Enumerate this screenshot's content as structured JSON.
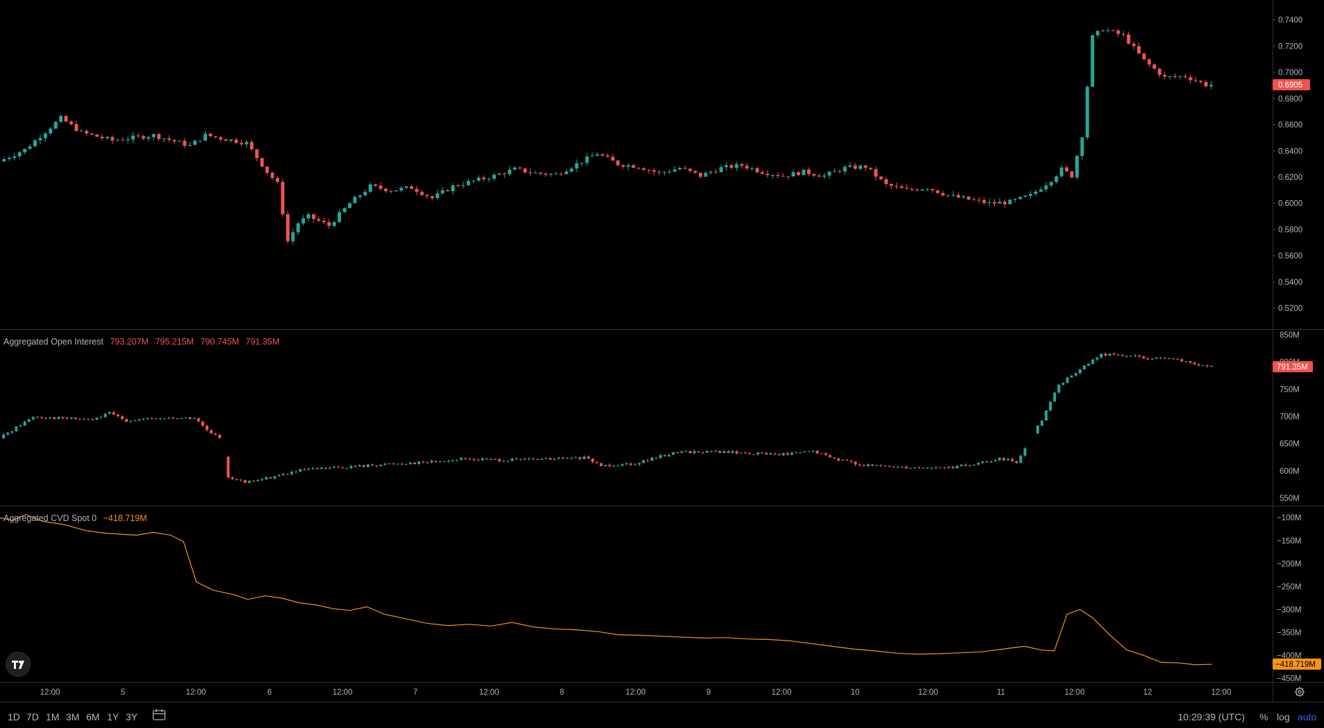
{
  "chart_data": [
    {
      "type": "candlestick",
      "price_axis": {
        "ticks": [
          "0.7400",
          "0.7200",
          "0.7000",
          "0.6800",
          "0.6600",
          "0.6400",
          "0.6200",
          "0.6000",
          "0.5800",
          "0.5600",
          "0.5400",
          "0.5200"
        ],
        "range": [
          0.506,
          0.752
        ]
      },
      "last_price": "0.6905",
      "last_price_value": 0.6905,
      "candle_count": 168,
      "price_anchors": [
        [
          0,
          0.632
        ],
        [
          5,
          0.641
        ],
        [
          12,
          0.665
        ],
        [
          16,
          0.654
        ],
        [
          22,
          0.648
        ],
        [
          30,
          0.652
        ],
        [
          37,
          0.644
        ],
        [
          40,
          0.652
        ],
        [
          44,
          0.649
        ],
        [
          48,
          0.646
        ],
        [
          52,
          0.624
        ],
        [
          54,
          0.615
        ],
        [
          56,
          0.571
        ],
        [
          58,
          0.585
        ],
        [
          60,
          0.59
        ],
        [
          64,
          0.583
        ],
        [
          68,
          0.6
        ],
        [
          72,
          0.613
        ],
        [
          76,
          0.61
        ],
        [
          80,
          0.612
        ],
        [
          84,
          0.604
        ],
        [
          88,
          0.613
        ],
        [
          92,
          0.617
        ],
        [
          96,
          0.621
        ],
        [
          100,
          0.626
        ],
        [
          104,
          0.623
        ],
        [
          108,
          0.622
        ],
        [
          112,
          0.63
        ],
        [
          116,
          0.638
        ],
        [
          120,
          0.63
        ],
        [
          124,
          0.628
        ],
        [
          128,
          0.623
        ],
        [
          132,
          0.627
        ],
        [
          136,
          0.621
        ],
        [
          140,
          0.627
        ],
        [
          144,
          0.629
        ],
        [
          148,
          0.624
        ],
        [
          152,
          0.621
        ],
        [
          156,
          0.624
        ],
        [
          160,
          0.621
        ],
        [
          164,
          0.627
        ],
        [
          168,
          0.628
        ],
        [
          172,
          0.614
        ],
        [
          176,
          0.61
        ],
        [
          180,
          0.612
        ],
        [
          184,
          0.606
        ],
        [
          188,
          0.603
        ],
        [
          192,
          0.6
        ],
        [
          196,
          0.601
        ],
        [
          200,
          0.606
        ],
        [
          204,
          0.618
        ],
        [
          206,
          0.626
        ],
        [
          208,
          0.621
        ],
        [
          210,
          0.652
        ],
        [
          212,
          0.727
        ],
        [
          214,
          0.733
        ],
        [
          218,
          0.728
        ],
        [
          222,
          0.709
        ],
        [
          226,
          0.696
        ],
        [
          230,
          0.697
        ],
        [
          234,
          0.6905
        ]
      ],
      "open_interest": {
        "title": "Aggregated Open Interest",
        "values": [
          "793.207M",
          "795.215M",
          "790.745M",
          "791.35M"
        ],
        "last_label": "791.35M",
        "last_value": 791.35,
        "axis_ticks": [
          "850M",
          "800M",
          "750M",
          "700M",
          "650M",
          "600M",
          "550M"
        ],
        "range": [
          540,
          855
        ],
        "anchors": [
          [
            0,
            660
          ],
          [
            4,
            680
          ],
          [
            8,
            700
          ],
          [
            14,
            697
          ],
          [
            22,
            694
          ],
          [
            26,
            706
          ],
          [
            30,
            693
          ],
          [
            40,
            697
          ],
          [
            46,
            697
          ],
          [
            50,
            667
          ],
          [
            52,
            662
          ],
          [
            54,
            590
          ],
          [
            58,
            578
          ],
          [
            62,
            585
          ],
          [
            66,
            592
          ],
          [
            72,
            602
          ],
          [
            80,
            606
          ],
          [
            92,
            613
          ],
          [
            100,
            616
          ],
          [
            110,
            622
          ],
          [
            120,
            620
          ],
          [
            130,
            622
          ],
          [
            138,
            624
          ],
          [
            142,
            610
          ],
          [
            150,
            614
          ],
          [
            160,
            635
          ],
          [
            170,
            635
          ],
          [
            178,
            632
          ],
          [
            186,
            631
          ],
          [
            192,
            636
          ],
          [
            196,
            625
          ],
          [
            204,
            610
          ],
          [
            210,
            608
          ],
          [
            218,
            606
          ],
          [
            224,
            606
          ],
          [
            230,
            612
          ],
          [
            236,
            622
          ],
          [
            240,
            617
          ],
          [
            246,
            695
          ],
          [
            250,
            758
          ],
          [
            256,
            792
          ],
          [
            260,
            814
          ],
          [
            266,
            812
          ],
          [
            272,
            806
          ],
          [
            278,
            804
          ],
          [
            284,
            792
          ]
        ]
      },
      "cvd": {
        "title": "Aggregated CVD Spot 0",
        "value_label": "−418.719M",
        "last_label": "−418.719M",
        "last_value": -418.719,
        "axis_ticks": [
          "−100M",
          "−150M",
          "−200M",
          "−250M",
          "−300M",
          "−350M",
          "−400M",
          "−450M"
        ],
        "range": [
          -455,
          -80
        ],
        "points": [
          [
            0,
            -100
          ],
          [
            3,
            -106
          ],
          [
            6,
            -93
          ],
          [
            10,
            -108
          ],
          [
            15,
            -115
          ],
          [
            20,
            -128
          ],
          [
            24,
            -133
          ],
          [
            28,
            -136
          ],
          [
            32,
            -138
          ],
          [
            36,
            -132
          ],
          [
            40,
            -138
          ],
          [
            43,
            -152
          ],
          [
            46,
            -240
          ],
          [
            50,
            -258
          ],
          [
            55,
            -268
          ],
          [
            58,
            -278
          ],
          [
            62,
            -270
          ],
          [
            66,
            -275
          ],
          [
            70,
            -285
          ],
          [
            74,
            -290
          ],
          [
            78,
            -298
          ],
          [
            82,
            -302
          ],
          [
            86,
            -294
          ],
          [
            90,
            -310
          ],
          [
            95,
            -320
          ],
          [
            100,
            -330
          ],
          [
            105,
            -335
          ],
          [
            110,
            -332
          ],
          [
            115,
            -336
          ],
          [
            120,
            -328
          ],
          [
            125,
            -338
          ],
          [
            130,
            -342
          ],
          [
            135,
            -344
          ],
          [
            140,
            -348
          ],
          [
            145,
            -355
          ],
          [
            150,
            -356
          ],
          [
            155,
            -358
          ],
          [
            160,
            -360
          ],
          [
            165,
            -362
          ],
          [
            170,
            -361
          ],
          [
            175,
            -364
          ],
          [
            180,
            -365
          ],
          [
            185,
            -368
          ],
          [
            190,
            -374
          ],
          [
            195,
            -380
          ],
          [
            200,
            -386
          ],
          [
            205,
            -390
          ],
          [
            210,
            -395
          ],
          [
            215,
            -397
          ],
          [
            220,
            -396
          ],
          [
            225,
            -394
          ],
          [
            230,
            -392
          ],
          [
            235,
            -386
          ],
          [
            240,
            -380
          ],
          [
            244,
            -388
          ],
          [
            247,
            -390
          ],
          [
            250,
            -310
          ],
          [
            253,
            -300
          ],
          [
            256,
            -318
          ],
          [
            260,
            -355
          ],
          [
            264,
            -388
          ],
          [
            268,
            -400
          ],
          [
            272,
            -415
          ],
          [
            276,
            -416
          ],
          [
            280,
            -420
          ],
          [
            284,
            -419
          ]
        ]
      },
      "x_axis": {
        "ticks": [
          "12:00",
          "5",
          "12:00",
          "6",
          "12:00",
          "7",
          "12:00",
          "8",
          "12:00",
          "9",
          "12:00",
          "10",
          "12:00",
          "11",
          "12:00",
          "12",
          "12:00"
        ]
      }
    }
  ],
  "timeframes": [
    "1D",
    "7D",
    "1M",
    "3M",
    "6M",
    "1Y",
    "3Y"
  ],
  "clock": "10:29:39 (UTC)",
  "options": {
    "percent": "%",
    "log": "log",
    "auto": "auto"
  },
  "colors": {
    "up": "#26a69a",
    "down": "#ef5350",
    "cvd_line": "#f7931a",
    "auto_active": "#2962ff",
    "background": "#000000"
  }
}
